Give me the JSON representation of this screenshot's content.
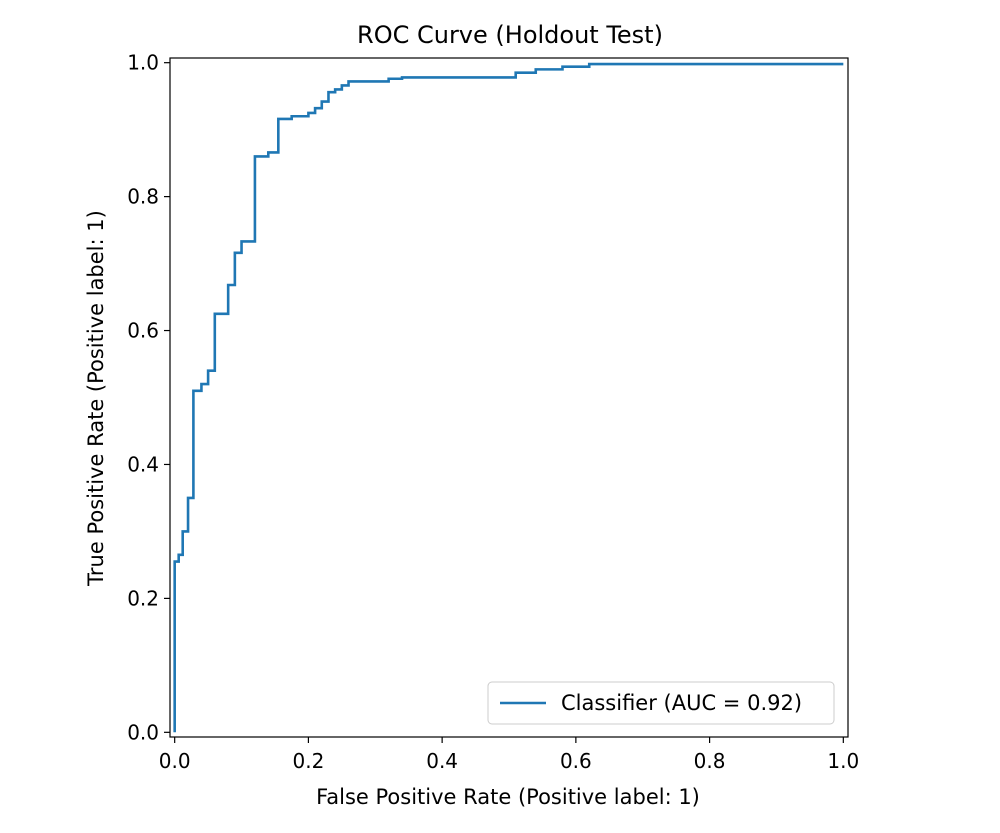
{
  "chart_data": {
    "type": "line",
    "title": "ROC Curve (Holdout Test)",
    "xlabel": "False Positive Rate (Positive label: 1)",
    "ylabel": "True Positive Rate (Positive label: 1)",
    "xlim": [
      -0.007,
      1.007
    ],
    "ylim": [
      -0.007,
      1.007
    ],
    "xticks": [
      0.0,
      0.2,
      0.4,
      0.6,
      0.8,
      1.0
    ],
    "yticks": [
      0.0,
      0.2,
      0.4,
      0.6,
      0.8,
      1.0
    ],
    "xtick_labels": [
      "0.0",
      "0.2",
      "0.4",
      "0.6",
      "0.8",
      "1.0"
    ],
    "ytick_labels": [
      "0.0",
      "0.2",
      "0.4",
      "0.6",
      "0.8",
      "1.0"
    ],
    "grid": false,
    "legend_position": "lower-right",
    "series": [
      {
        "name": "Classifier (AUC = 0.92)",
        "color": "#1f77b4",
        "x": [
          0.0,
          0.0,
          0.006,
          0.006,
          0.012,
          0.012,
          0.02,
          0.02,
          0.028,
          0.028,
          0.04,
          0.04,
          0.05,
          0.05,
          0.06,
          0.06,
          0.08,
          0.08,
          0.09,
          0.09,
          0.1,
          0.1,
          0.12,
          0.12,
          0.14,
          0.14,
          0.155,
          0.155,
          0.175,
          0.175,
          0.2,
          0.2,
          0.21,
          0.21,
          0.22,
          0.22,
          0.23,
          0.23,
          0.24,
          0.24,
          0.25,
          0.25,
          0.26,
          0.26,
          0.32,
          0.32,
          0.34,
          0.34,
          0.51,
          0.51,
          0.54,
          0.54,
          0.58,
          0.58,
          0.62,
          0.62,
          1.0
        ],
        "y": [
          0.0,
          0.255,
          0.255,
          0.265,
          0.265,
          0.3,
          0.3,
          0.35,
          0.35,
          0.51,
          0.51,
          0.52,
          0.52,
          0.54,
          0.54,
          0.625,
          0.625,
          0.668,
          0.668,
          0.716,
          0.716,
          0.733,
          0.733,
          0.86,
          0.86,
          0.866,
          0.866,
          0.916,
          0.916,
          0.92,
          0.92,
          0.925,
          0.925,
          0.932,
          0.932,
          0.942,
          0.942,
          0.956,
          0.956,
          0.96,
          0.96,
          0.966,
          0.966,
          0.972,
          0.972,
          0.976,
          0.976,
          0.978,
          0.978,
          0.985,
          0.985,
          0.99,
          0.99,
          0.994,
          0.994,
          0.998,
          0.998
        ]
      }
    ]
  }
}
